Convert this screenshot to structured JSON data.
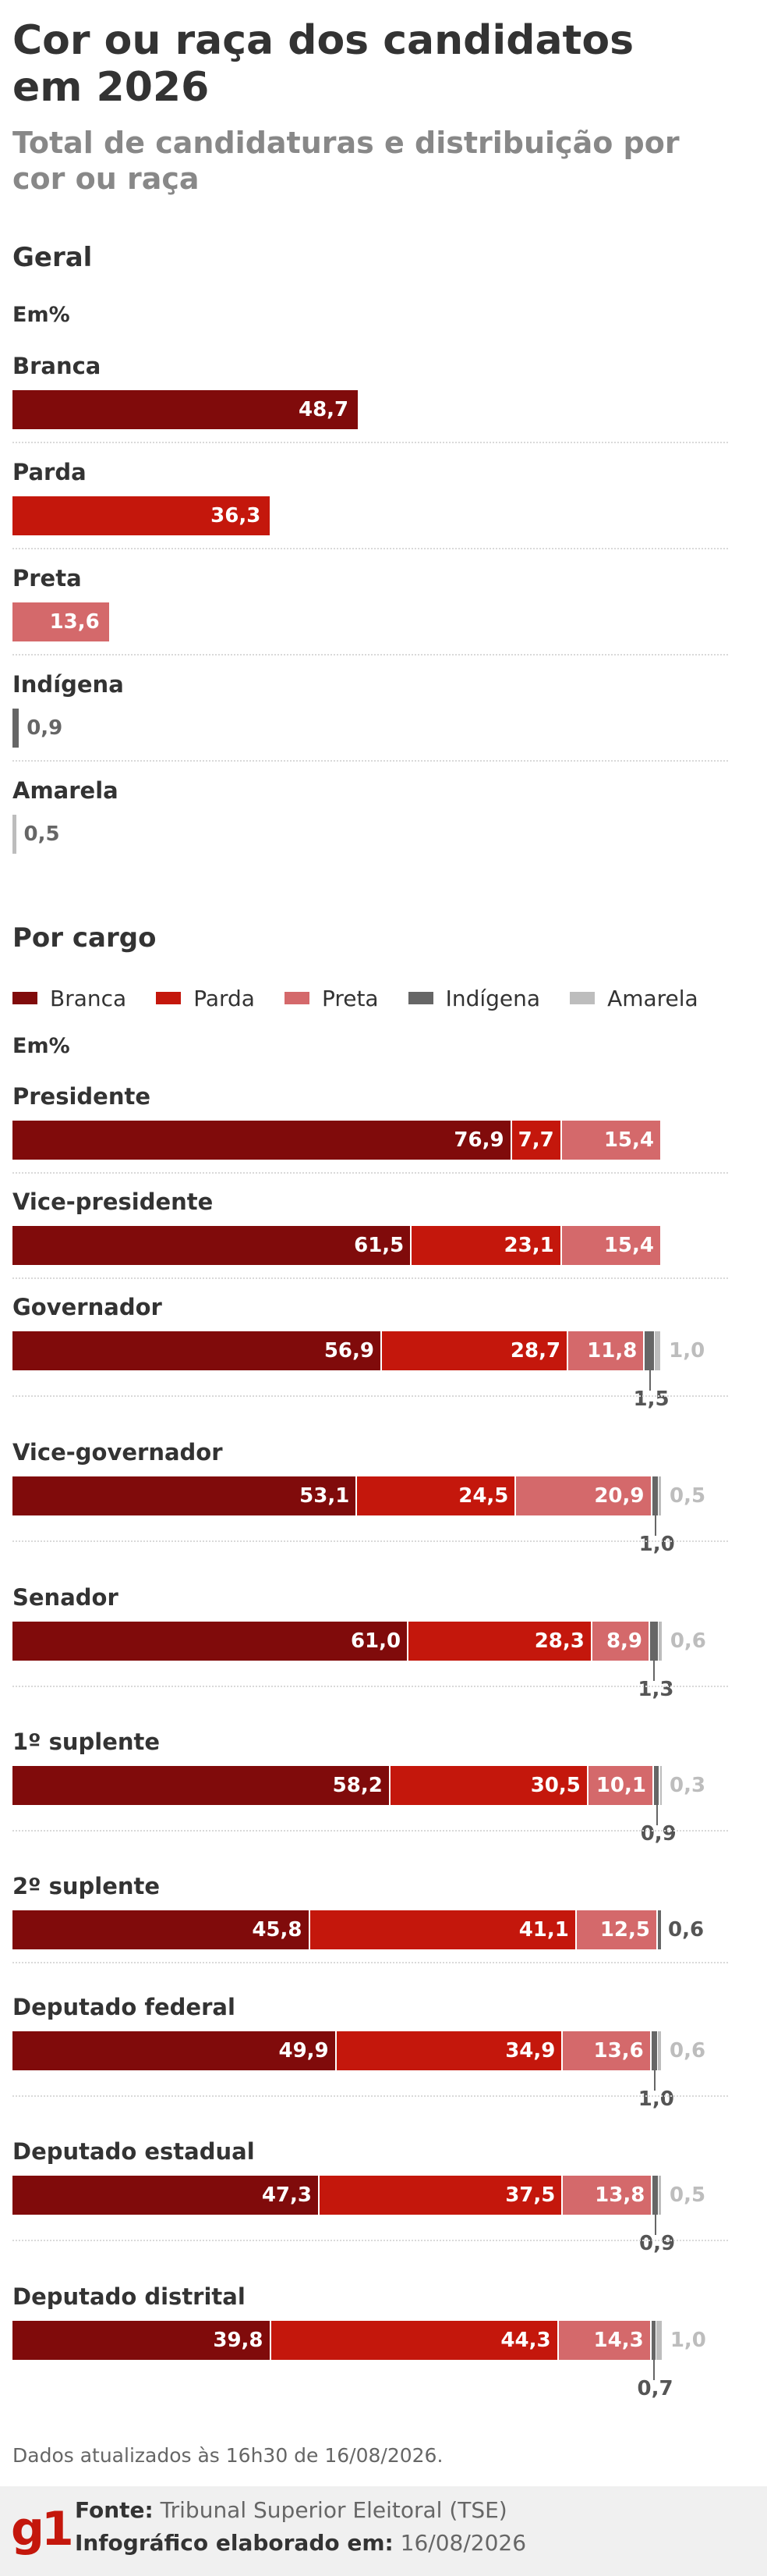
{
  "header": {
    "title": "Cor ou raça dos candidatos em 2026",
    "subtitle": "Total de candidaturas e distribuição por cor ou raça"
  },
  "colors": {
    "branca": "#800b0b",
    "parda": "#c4170c",
    "preta": "#d4696b",
    "indigena": "#666666",
    "amarela": "#bdbdbd"
  },
  "chart_data": [
    {
      "type": "bar",
      "title": "Geral",
      "unit_label": "Em%",
      "categories": [
        "Branca",
        "Parda",
        "Preta",
        "Indígena",
        "Amarela"
      ],
      "values": [
        48.7,
        36.3,
        13.6,
        0.9,
        0.5
      ],
      "value_labels": [
        "48,7",
        "36,3",
        "13,6",
        "0,9",
        "0,5"
      ]
    },
    {
      "type": "bar",
      "stacked": true,
      "title": "Por cargo",
      "unit_label": "Em%",
      "legend": [
        "Branca",
        "Parda",
        "Preta",
        "Indígena",
        "Amarela"
      ],
      "categories": [
        "Presidente",
        "Vice-presidente",
        "Governador",
        "Vice-governador",
        "Senador",
        "1º suplente",
        "2º suplente",
        "Deputado federal",
        "Deputado estadual",
        "Deputado distrital"
      ],
      "series": [
        {
          "name": "Branca",
          "values": [
            76.9,
            61.5,
            56.9,
            53.1,
            61.0,
            58.2,
            45.8,
            49.9,
            47.3,
            39.8
          ],
          "labels": [
            "76,9",
            "61,5",
            "56,9",
            "53,1",
            "61,0",
            "58,2",
            "45,8",
            "49,9",
            "47,3",
            "39,8"
          ]
        },
        {
          "name": "Parda",
          "values": [
            7.7,
            23.1,
            28.7,
            24.5,
            28.3,
            30.5,
            41.1,
            34.9,
            37.5,
            44.3
          ],
          "labels": [
            "7,7",
            "23,1",
            "28,7",
            "24,5",
            "28,3",
            "30,5",
            "41,1",
            "34,9",
            "37,5",
            "44,3"
          ]
        },
        {
          "name": "Preta",
          "values": [
            15.4,
            15.4,
            11.8,
            20.9,
            8.9,
            10.1,
            12.5,
            13.6,
            13.8,
            14.3
          ],
          "labels": [
            "15,4",
            "15,4",
            "11,8",
            "20,9",
            "8,9",
            "10,1",
            "12,5",
            "13,6",
            "13,8",
            "14,3"
          ]
        },
        {
          "name": "Indígena",
          "values": [
            0,
            0,
            1.5,
            1.0,
            1.3,
            0.9,
            0.6,
            1.0,
            0.9,
            0.7
          ],
          "labels": [
            "",
            "",
            "1,5",
            "1,0",
            "1,3",
            "0,9",
            "0,6",
            "1,0",
            "0,9",
            "0,7"
          ]
        },
        {
          "name": "Amarela",
          "values": [
            0,
            0,
            1.0,
            0.5,
            0.6,
            0.3,
            0,
            0.6,
            0.5,
            1.0
          ],
          "labels": [
            "",
            "",
            "1,0",
            "0,5",
            "0,6",
            "0,3",
            "",
            "0,6",
            "0,5",
            "1,0"
          ]
        }
      ]
    }
  ],
  "note": "Dados atualizados às 16h30 de 16/08/2026.",
  "footer": {
    "logo": "g1",
    "source_label": "Fonte:",
    "source_value": "Tribunal Superior Eleitoral (TSE)",
    "credit_label": "Infográfico elaborado em:",
    "credit_value": "16/08/2026"
  }
}
